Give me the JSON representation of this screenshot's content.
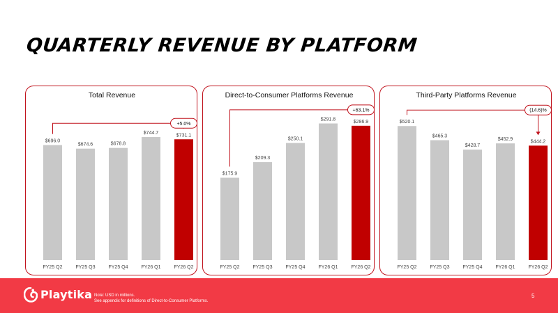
{
  "page": {
    "title": "QUARTERLY REVENUE BY PLATFORM",
    "page_number": "5"
  },
  "footer": {
    "logo_text": "Playtika",
    "note_line1": "Note:  USD in millions.",
    "note_line2": "See appendix for definitions of Direct-to-Consumer Platforms."
  },
  "colors": {
    "accent": "#c0121c",
    "bar": "#c8c8c8",
    "highlight_bar": "#c00000",
    "footer": "#f23a45"
  },
  "chart_data": [
    {
      "type": "bar",
      "title": "Total Revenue",
      "categories": [
        "FY25 Q2",
        "FY25 Q3",
        "FY25 Q4",
        "FY26 Q1",
        "FY26 Q2"
      ],
      "values": [
        696.0,
        674.6,
        678.8,
        744.7,
        731.1
      ],
      "value_labels": [
        "$696.0",
        "$674.6",
        "$678.8",
        "$744.7",
        "$731.1"
      ],
      "highlight_index": 4,
      "ylim": [
        0,
        850
      ],
      "annotation": "+5.0%",
      "xlabel": "",
      "ylabel": "",
      "grid": false
    },
    {
      "type": "bar",
      "title": "Direct-to-Consumer Platforms Revenue",
      "categories": [
        "FY25 Q2",
        "FY25 Q3",
        "FY25 Q4",
        "FY26 Q1",
        "FY26 Q2"
      ],
      "values": [
        175.9,
        209.3,
        250.1,
        291.8,
        286.9
      ],
      "value_labels": [
        "$175.9",
        "$209.3",
        "$250.1",
        "$291.8",
        "$286.9"
      ],
      "highlight_index": 4,
      "ylim": [
        0,
        300
      ],
      "annotation": "+63.1%",
      "xlabel": "",
      "ylabel": "",
      "grid": false
    },
    {
      "type": "bar",
      "title": "Third-Party Platforms Revenue",
      "categories": [
        "FY25 Q2",
        "FY25 Q3",
        "FY25 Q4",
        "FY26 Q1",
        "FY26 Q2"
      ],
      "values": [
        520.1,
        465.3,
        428.7,
        452.9,
        444.2
      ],
      "value_labels": [
        "$520.1",
        "$465.3",
        "$428.7",
        "$452.9",
        "$444.2"
      ],
      "highlight_index": 4,
      "ylim": [
        0,
        545
      ],
      "annotation": "(14.6)%",
      "xlabel": "",
      "ylabel": "",
      "grid": false
    }
  ]
}
